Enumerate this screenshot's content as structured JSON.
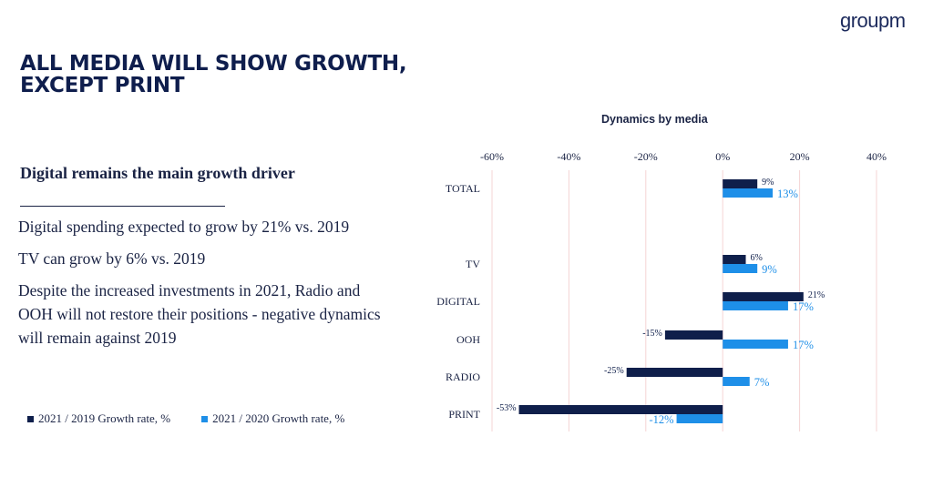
{
  "brand": {
    "logo_text": "groupm"
  },
  "slide": {
    "title_line1": "ALL MEDIA WILL SHOW GROWTH,",
    "title_line2": "EXCEPT PRINT",
    "subtitle": "Digital remains the main growth driver",
    "points": [
      "Digital spending expected to grow by 21% vs. 2019",
      "TV can  grow by 6% vs. 2019",
      "Despite the increased investments in 2021, Radio and OOH will not restore their positions - negative dynamics will remain against 2019"
    ]
  },
  "colors": {
    "series_2019": "#0f1f4b",
    "series_2020": "#1e8fe8",
    "gridline": "#f4d4d4",
    "text": "#1a2344"
  },
  "chart_data": {
    "type": "bar",
    "orientation": "horizontal",
    "title": "Dynamics by media",
    "categories": [
      "TOTAL",
      "TV",
      "DIGITAL",
      "OOH",
      "RADIO",
      "PRINT"
    ],
    "series": [
      {
        "name": "2021 / 2019 Growth rate, %",
        "values": [
          9,
          6,
          21,
          -15,
          -25,
          -53
        ],
        "labels": [
          "9%",
          "6%",
          "21%",
          "-15%",
          "-25%",
          "-53%"
        ]
      },
      {
        "name": "2021 / 2020 Growth rate, %",
        "values": [
          13,
          9,
          17,
          17,
          7,
          -12
        ],
        "labels": [
          "13%",
          "9%",
          "17%",
          "17%",
          "7%",
          "-12%"
        ]
      }
    ],
    "xlim": [
      -60,
      40
    ],
    "x_ticks": [
      -60,
      -40,
      -20,
      0,
      20,
      40
    ],
    "x_tick_labels": [
      "-60%",
      "-40%",
      "-20%",
      "0%",
      "20%",
      "40%"
    ],
    "grid": true,
    "legend_position": "bottom-left"
  }
}
